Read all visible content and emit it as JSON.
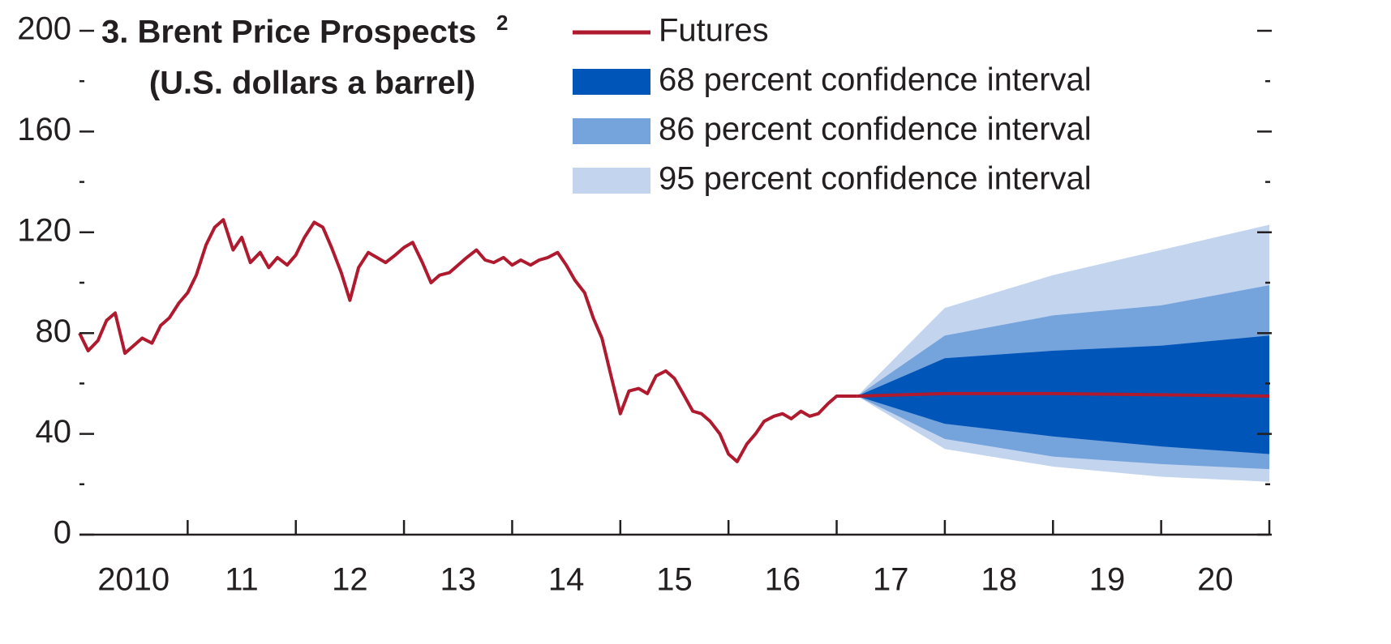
{
  "chart_data": {
    "type": "fan",
    "title": "3. Brent Price Prospects",
    "title_note": "2",
    "subtitle": "(U.S. dollars a barrel)",
    "xlim": [
      2010,
      2021
    ],
    "xticks": [
      {
        "value": 2010.5,
        "label": "2010"
      },
      {
        "value": 2011.5,
        "label": "11"
      },
      {
        "value": 2012.5,
        "label": "12"
      },
      {
        "value": 2013.5,
        "label": "13"
      },
      {
        "value": 2014.5,
        "label": "14"
      },
      {
        "value": 2015.5,
        "label": "15"
      },
      {
        "value": 2016.5,
        "label": "16"
      },
      {
        "value": 2017.5,
        "label": "17"
      },
      {
        "value": 2018.5,
        "label": "18"
      },
      {
        "value": 2019.5,
        "label": "19"
      },
      {
        "value": 2020.5,
        "label": "20"
      }
    ],
    "xtick_marks": [
      2011,
      2012,
      2013,
      2014,
      2015,
      2016,
      2017,
      2018,
      2019,
      2020,
      2021
    ],
    "ylim": [
      0,
      200
    ],
    "yticks": [
      0,
      40,
      80,
      120,
      160,
      200
    ],
    "yminor_ticks": [
      20,
      60,
      100,
      140,
      180
    ],
    "history": {
      "color": "#b01a2e",
      "x": [
        2010.0,
        2010.08,
        2010.17,
        2010.25,
        2010.33,
        2010.42,
        2010.5,
        2010.58,
        2010.67,
        2010.75,
        2010.83,
        2010.92,
        2011.0,
        2011.08,
        2011.17,
        2011.25,
        2011.33,
        2011.42,
        2011.5,
        2011.58,
        2011.67,
        2011.75,
        2011.83,
        2011.92,
        2012.0,
        2012.08,
        2012.17,
        2012.25,
        2012.33,
        2012.42,
        2012.5,
        2012.58,
        2012.67,
        2012.75,
        2012.83,
        2012.92,
        2013.0,
        2013.08,
        2013.17,
        2013.25,
        2013.33,
        2013.42,
        2013.5,
        2013.58,
        2013.67,
        2013.75,
        2013.83,
        2013.92,
        2014.0,
        2014.08,
        2014.17,
        2014.25,
        2014.33,
        2014.42,
        2014.5,
        2014.58,
        2014.67,
        2014.75,
        2014.83,
        2014.92,
        2015.0,
        2015.08,
        2015.17,
        2015.25,
        2015.33,
        2015.42,
        2015.5,
        2015.58,
        2015.67,
        2015.75,
        2015.83,
        2015.92,
        2016.0,
        2016.08,
        2016.17,
        2016.25,
        2016.33,
        2016.42,
        2016.5,
        2016.58,
        2016.67,
        2016.75,
        2016.83,
        2016.92,
        2017.0,
        2017.08,
        2017.19
      ],
      "values": [
        80,
        73,
        77,
        85,
        88,
        72,
        75,
        78,
        76,
        83,
        86,
        92,
        96,
        103,
        115,
        122,
        125,
        113,
        118,
        108,
        112,
        106,
        110,
        107,
        111,
        118,
        124,
        122,
        114,
        104,
        93,
        106,
        112,
        110,
        108,
        111,
        114,
        116,
        108,
        100,
        103,
        104,
        107,
        110,
        113,
        109,
        108,
        110,
        107,
        109,
        107,
        109,
        110,
        112,
        107,
        101,
        96,
        86,
        78,
        62,
        48,
        57,
        58,
        56,
        63,
        65,
        62,
        56,
        49,
        48,
        45,
        40,
        32,
        29,
        36,
        40,
        45,
        47,
        48,
        46,
        49,
        47,
        48,
        52,
        55,
        55,
        55
      ]
    },
    "forecast_x": [
      2017.19,
      2018,
      2019,
      2020,
      2021
    ],
    "series": [
      {
        "name": "Futures",
        "color": "#b01a2e",
        "values": [
          55,
          56,
          56,
          55.5,
          55
        ]
      },
      {
        "name": "68 percent confidence interval",
        "color": "#0055b8",
        "lower": [
          55,
          44,
          39,
          35,
          32
        ],
        "upper": [
          55,
          70,
          73,
          75,
          79
        ]
      },
      {
        "name": "86 percent confidence interval",
        "color": "#75a3dc",
        "lower": [
          55,
          38,
          31,
          28,
          26
        ],
        "upper": [
          55,
          79,
          87,
          91,
          99
        ]
      },
      {
        "name": "95 percent confidence interval",
        "color": "#c3d4ee",
        "lower": [
          55,
          34,
          27,
          23,
          21
        ],
        "upper": [
          55,
          90,
          103,
          113,
          123
        ]
      }
    ]
  }
}
